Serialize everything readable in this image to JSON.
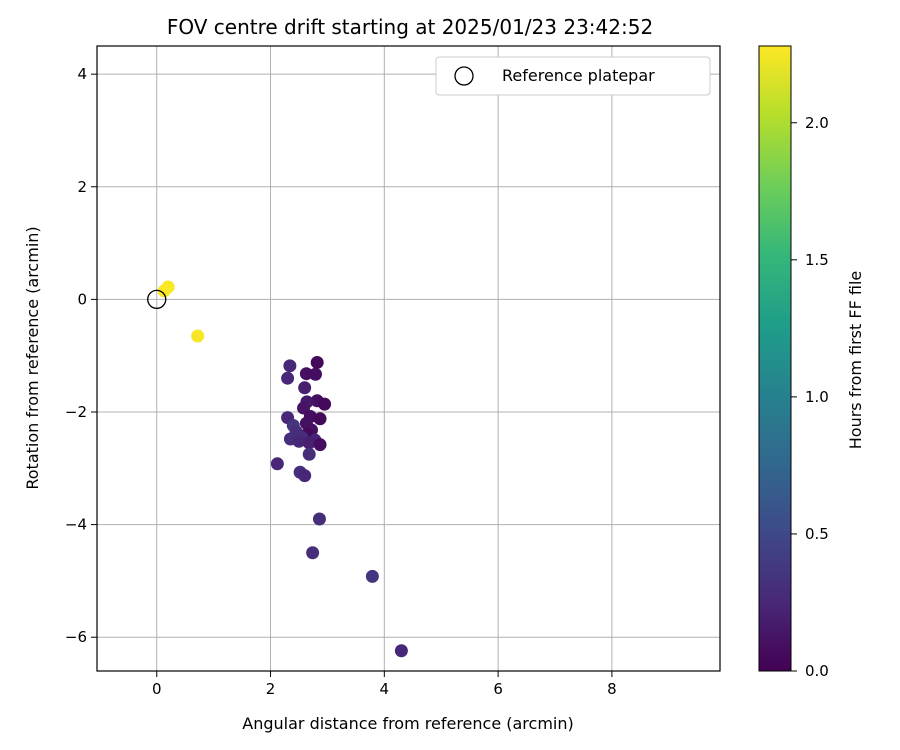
{
  "chart_data": {
    "type": "scatter",
    "title": "FOV centre drift starting at 2025/01/23 23:42:52",
    "xlabel": "Angular distance from reference (arcmin)",
    "ylabel": "Rotation from reference (arcmin)",
    "xlim": [
      -1.05,
      9.9
    ],
    "ylim": [
      -6.6,
      4.5
    ],
    "xticks": [
      0,
      2,
      4,
      6,
      8
    ],
    "yticks": [
      -6,
      -4,
      -2,
      0,
      2,
      4
    ],
    "grid": true,
    "legend_position": "top-right",
    "reference": {
      "label": "Reference platepar",
      "x": 0,
      "y": 0
    },
    "colorbar": {
      "label": "Hours from first FF file",
      "range": [
        0,
        2.28
      ],
      "ticks": [
        0.0,
        0.5,
        1.0,
        1.5,
        2.0
      ],
      "tick_labels": [
        "0.0",
        "0.5",
        "1.0",
        "1.5",
        "2.0"
      ],
      "colormap": [
        "#440154",
        "#482878",
        "#3e4989",
        "#31688e",
        "#26828e",
        "#1f9e89",
        "#35b779",
        "#6ece58",
        "#b5de2b",
        "#fde725"
      ]
    },
    "points": [
      {
        "x": 0.13,
        "y": 0.15,
        "c": 2.27
      },
      {
        "x": 0.2,
        "y": 0.22,
        "c": 2.27
      },
      {
        "x": 0.72,
        "y": -0.65,
        "c": 2.26
      },
      {
        "x": 2.82,
        "y": -1.12,
        "c": 0.05
      },
      {
        "x": 2.34,
        "y": -1.18,
        "c": 0.25
      },
      {
        "x": 2.63,
        "y": -1.32,
        "c": 0.1
      },
      {
        "x": 2.79,
        "y": -1.33,
        "c": 0.08
      },
      {
        "x": 2.3,
        "y": -1.4,
        "c": 0.25
      },
      {
        "x": 2.6,
        "y": -1.57,
        "c": 0.2
      },
      {
        "x": 2.82,
        "y": -1.8,
        "c": 0.1
      },
      {
        "x": 2.64,
        "y": -1.82,
        "c": 0.15
      },
      {
        "x": 2.95,
        "y": -1.86,
        "c": 0.05
      },
      {
        "x": 2.58,
        "y": -1.93,
        "c": 0.12
      },
      {
        "x": 2.7,
        "y": -2.08,
        "c": 0.08
      },
      {
        "x": 2.3,
        "y": -2.1,
        "c": 0.25
      },
      {
        "x": 2.87,
        "y": -2.12,
        "c": 0.05
      },
      {
        "x": 2.63,
        "y": -2.2,
        "c": 0.1
      },
      {
        "x": 2.4,
        "y": -2.24,
        "c": 0.35
      },
      {
        "x": 2.72,
        "y": -2.32,
        "c": 0.1
      },
      {
        "x": 2.45,
        "y": -2.35,
        "c": 0.3
      },
      {
        "x": 2.64,
        "y": -2.4,
        "c": 0.05
      },
      {
        "x": 2.55,
        "y": -2.45,
        "c": 0.3
      },
      {
        "x": 2.35,
        "y": -2.48,
        "c": 0.3
      },
      {
        "x": 2.78,
        "y": -2.5,
        "c": 0.22
      },
      {
        "x": 2.5,
        "y": -2.52,
        "c": 0.25
      },
      {
        "x": 2.68,
        "y": -2.55,
        "c": 0.2
      },
      {
        "x": 2.87,
        "y": -2.58,
        "c": 0.08
      },
      {
        "x": 2.68,
        "y": -2.75,
        "c": 0.3
      },
      {
        "x": 2.12,
        "y": -2.92,
        "c": 0.25
      },
      {
        "x": 2.52,
        "y": -3.07,
        "c": 0.3
      },
      {
        "x": 2.6,
        "y": -3.13,
        "c": 0.25
      },
      {
        "x": 2.86,
        "y": -3.9,
        "c": 0.3
      },
      {
        "x": 2.74,
        "y": -4.5,
        "c": 0.3
      },
      {
        "x": 3.79,
        "y": -4.92,
        "c": 0.35
      },
      {
        "x": 4.3,
        "y": -6.24,
        "c": 0.25
      }
    ]
  }
}
